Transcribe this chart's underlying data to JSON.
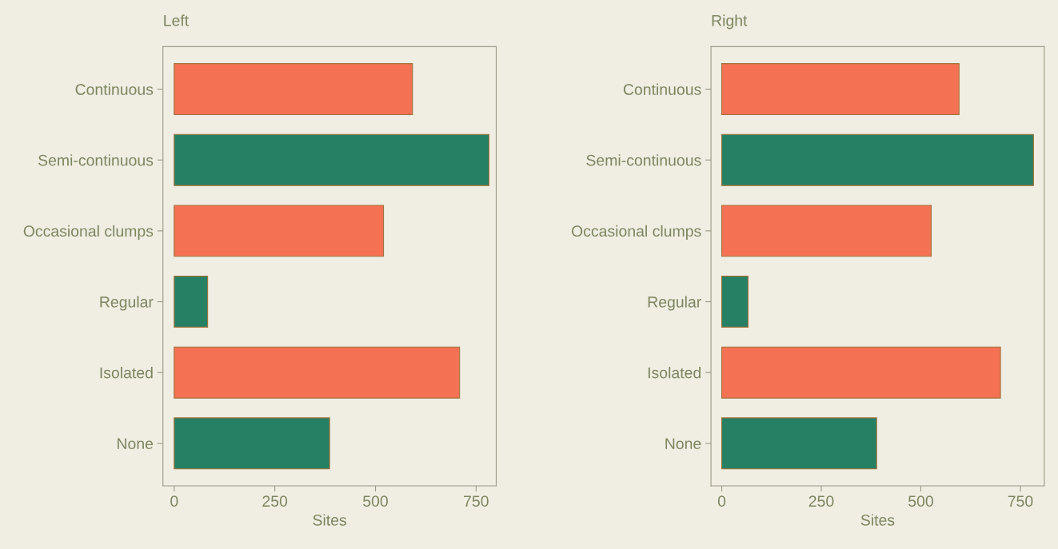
{
  "chart_data": [
    {
      "type": "bar",
      "orientation": "horizontal",
      "title": "Left",
      "xlabel": "Sites",
      "categories": [
        "Continuous",
        "Semi-continuous",
        "Occasional clumps",
        "Regular",
        "Isolated",
        "None"
      ],
      "values": [
        592,
        782,
        520,
        83,
        709,
        386
      ],
      "colors": [
        "#f47253",
        "#268063",
        "#f47253",
        "#268063",
        "#f47253",
        "#268063"
      ],
      "xlim": [
        -28,
        800
      ],
      "xticks": [
        0,
        250,
        500,
        750
      ],
      "grid": false,
      "legend": false
    },
    {
      "type": "bar",
      "orientation": "horizontal",
      "title": "Right",
      "xlabel": "Sites",
      "categories": [
        "Continuous",
        "Semi-continuous",
        "Occasional clumps",
        "Regular",
        "Isolated",
        "None"
      ],
      "values": [
        596,
        783,
        526,
        66,
        700,
        389
      ],
      "colors": [
        "#f47253",
        "#268063",
        "#f47253",
        "#268063",
        "#f47253",
        "#268063"
      ],
      "xlim": [
        -27,
        810
      ],
      "xticks": [
        0,
        250,
        500,
        750
      ],
      "grid": false,
      "legend": false
    }
  ]
}
